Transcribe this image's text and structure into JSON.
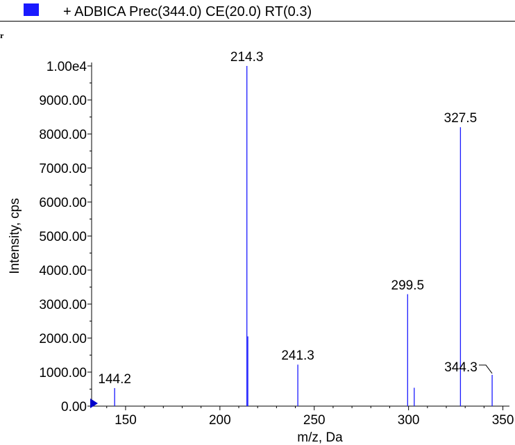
{
  "legend": {
    "label": "+ ADBICA Prec(344.0) CE(20.0) RT(0.3)",
    "swatch_color": "#1a1aff"
  },
  "corner_glyph": "r",
  "chart_data": {
    "type": "bar",
    "title": "",
    "xlabel": "m/z, Da",
    "ylabel": "Intensity, cps",
    "xlim": [
      132,
      352
    ],
    "ylim": [
      0,
      10000
    ],
    "x_ticks": [
      150,
      200,
      250,
      300,
      350
    ],
    "x_tick_labels": [
      "150",
      "200",
      "250",
      "300",
      "350"
    ],
    "y_ticks": [
      0,
      1000,
      2000,
      3000,
      4000,
      5000,
      6000,
      7000,
      8000,
      9000,
      10000
    ],
    "y_tick_labels": [
      "0.00",
      "1000.00",
      "2000.00",
      "3000.00",
      "4000.00",
      "5000.00",
      "6000.00",
      "7000.00",
      "8000.00",
      "9000.00",
      "1.00e4"
    ],
    "peak_color": "#1a1aff",
    "series": [
      {
        "x": [
          144.2,
          214.3,
          214.8,
          241.3,
          299.5,
          303.0,
          327.5,
          344.3
        ],
        "values": [
          530,
          10000,
          2050,
          1220,
          3290,
          540,
          8200,
          920
        ]
      }
    ],
    "annotations": [
      {
        "x": 144.2,
        "y": 530,
        "label": "144.2",
        "leader": false
      },
      {
        "x": 214.3,
        "y": 10000,
        "label": "214.3",
        "leader": false
      },
      {
        "x": 241.3,
        "y": 1220,
        "label": "241.3",
        "leader": false
      },
      {
        "x": 299.5,
        "y": 3290,
        "label": "299.5",
        "leader": false
      },
      {
        "x": 327.5,
        "y": 8200,
        "label": "327.5",
        "leader": false
      },
      {
        "x": 344.3,
        "y": 920,
        "label": "344.3",
        "leader": true
      }
    ],
    "marker_color": "#0000cc"
  }
}
